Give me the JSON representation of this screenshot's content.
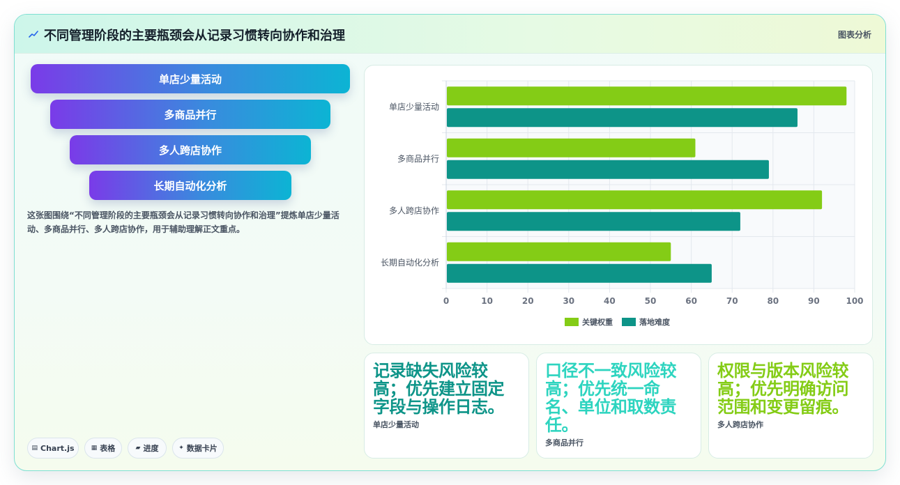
{
  "header": {
    "title": "不同管理阶段的主要瓶颈会从记录习惯转向协作和治理",
    "tag": "图表分析",
    "icon": "trend-line-icon"
  },
  "funnel": {
    "steps": [
      "单店少量活动",
      "多商品并行",
      "多人跨店协作",
      "长期自动化分析"
    ]
  },
  "description": "这张图围绕“不同管理阶段的主要瓶颈会从记录习惯转向协作和治理”提炼单店少量活动、多商品并行、多人跨店协作，用于辅助理解正文重点。",
  "chips": [
    {
      "icon": "chart-icon",
      "glyph": "▤",
      "label": "Chart.js"
    },
    {
      "icon": "table-icon",
      "glyph": "▦",
      "label": "表格"
    },
    {
      "icon": "folder-icon",
      "glyph": "▰",
      "label": "进度"
    },
    {
      "icon": "sparkle-icon",
      "glyph": "✦",
      "label": "数据卡片"
    }
  ],
  "chart_data": {
    "type": "bar",
    "orientation": "horizontal",
    "categories": [
      "单店少量活动",
      "多商品并行",
      "多人跨店协作",
      "长期自动化分析"
    ],
    "series": [
      {
        "name": "关键权重",
        "color": "#84cc16",
        "values": [
          98,
          61,
          92,
          55
        ]
      },
      {
        "name": "落地难度",
        "color": "#0d9488",
        "values": [
          86,
          79,
          72,
          65
        ]
      }
    ],
    "xlim": [
      0,
      100
    ],
    "xticks": [
      0,
      10,
      20,
      30,
      40,
      50,
      60,
      70,
      80,
      90,
      100
    ],
    "grid": true,
    "legend": "bottom"
  },
  "insights": [
    {
      "title": "记录缺失风险较高；优先建立固定字段与操作日志。",
      "label": "单店少量活动",
      "color": "#0d9488"
    },
    {
      "title": "口径不一致风险较高；优先统一命名、单位和取数责任。",
      "label": "多商品并行",
      "color": "#2dd4bf"
    },
    {
      "title": "权限与版本风险较高；优先明确访问范围和变更留痕。",
      "label": "多人跨店协作",
      "color": "#84cc16"
    }
  ]
}
